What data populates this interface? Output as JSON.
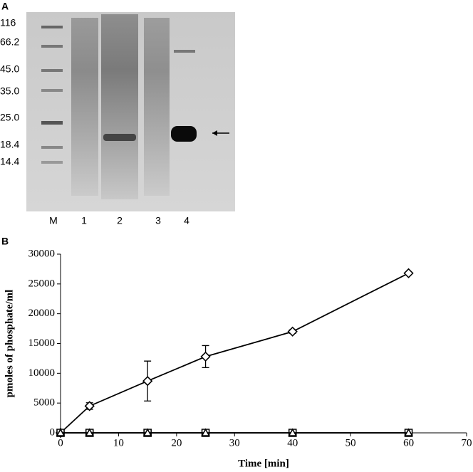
{
  "panel_a": {
    "label": "A",
    "markers": [
      "116",
      "66.2",
      "45.0",
      "35.0",
      "25.0",
      "18.4",
      "14.4"
    ],
    "lanes": [
      "M",
      "1",
      "2",
      "3",
      "4"
    ]
  },
  "chart_data": {
    "type": "line",
    "panel_label": "B",
    "xlabel": "Time [min]",
    "ylabel": "pmoles of phosphate/ml",
    "x": [
      0,
      5,
      15,
      25,
      40,
      60
    ],
    "series": [
      {
        "color": "#000000",
        "marker": "diamond",
        "values": [
          0,
          4500,
          8700,
          12800,
          17000,
          26800
        ],
        "errors": [
          0,
          550,
          3350,
          1850,
          300,
          0
        ]
      },
      {
        "color": "#000000",
        "marker": "square",
        "values": [
          0,
          0,
          0,
          0,
          0,
          0
        ]
      },
      {
        "color": "#000000",
        "marker": "triangle",
        "values": [
          0,
          0,
          0,
          0,
          0,
          0
        ]
      }
    ],
    "xlim": [
      0,
      70
    ],
    "xticks": [
      0,
      10,
      20,
      30,
      40,
      50,
      60,
      70
    ],
    "ylim": [
      0,
      30000
    ],
    "yticks": [
      0,
      5000,
      10000,
      15000,
      20000,
      25000,
      30000
    ]
  }
}
